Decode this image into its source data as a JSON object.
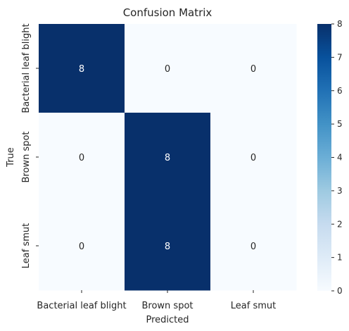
{
  "chart_data": {
    "type": "heatmap",
    "title": "Confusion Matrix",
    "xlabel": "Predicted",
    "ylabel": "True",
    "x_categories": [
      "Bacterial leaf blight",
      "Brown spot",
      "Leaf smut"
    ],
    "y_categories": [
      "Bacterial leaf blight",
      "Brown spot",
      "Leaf smut"
    ],
    "values": [
      [
        8,
        0,
        0
      ],
      [
        0,
        8,
        0
      ],
      [
        0,
        8,
        0
      ]
    ],
    "colorbar": {
      "min": 0,
      "max": 8,
      "ticks": [
        0,
        1,
        2,
        3,
        4,
        5,
        6,
        7,
        8
      ],
      "colormap": "Blues"
    },
    "colors": {
      "low": "#f7fbff",
      "high": "#08306b",
      "text_on_dark": "#ffffff",
      "text_on_light": "#262626"
    }
  }
}
